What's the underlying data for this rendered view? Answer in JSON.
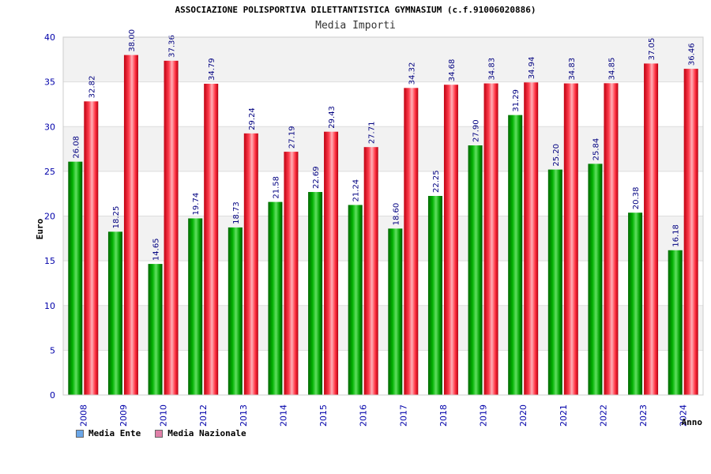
{
  "header": {
    "title": "ASSOCIAZIONE POLISPORTIVA DILETTANTISTICA GYMNASIUM (c.f.91006020886)",
    "subtitle": "Media Importi"
  },
  "legend": {
    "items": [
      {
        "label": "Media Ente",
        "color": "#6aa6e8"
      },
      {
        "label": "Media Nazionale",
        "color": "#e080a8"
      }
    ]
  },
  "colors": {
    "series_green": "#00a000",
    "series_red": "#e8202c",
    "axis_text": "#0000aa",
    "value_text": "#000080",
    "band": "#f2f2f2"
  },
  "chart_data": {
    "type": "bar",
    "title": "Media Importi",
    "xlabel": "Anno",
    "ylabel": "Euro",
    "ylim": [
      0,
      40
    ],
    "yticks": [
      0,
      5,
      10,
      15,
      20,
      25,
      30,
      35,
      40
    ],
    "grid": true,
    "legend_position": "bottom-left",
    "categories": [
      "2008",
      "2009",
      "2010",
      "2012",
      "2013",
      "2014",
      "2015",
      "2016",
      "2017",
      "2018",
      "2019",
      "2020",
      "2021",
      "2022",
      "2023",
      "2024"
    ],
    "series": [
      {
        "name": "Media Ente",
        "values": [
          26.08,
          18.25,
          14.65,
          19.74,
          18.73,
          21.58,
          22.69,
          21.24,
          18.6,
          22.25,
          27.9,
          31.29,
          25.2,
          25.84,
          20.38,
          16.18
        ]
      },
      {
        "name": "Media Nazionale",
        "values": [
          32.82,
          38.0,
          37.36,
          34.79,
          29.24,
          27.19,
          29.43,
          27.71,
          34.32,
          34.68,
          34.83,
          34.94,
          34.83,
          34.85,
          37.05,
          36.46
        ]
      }
    ]
  }
}
